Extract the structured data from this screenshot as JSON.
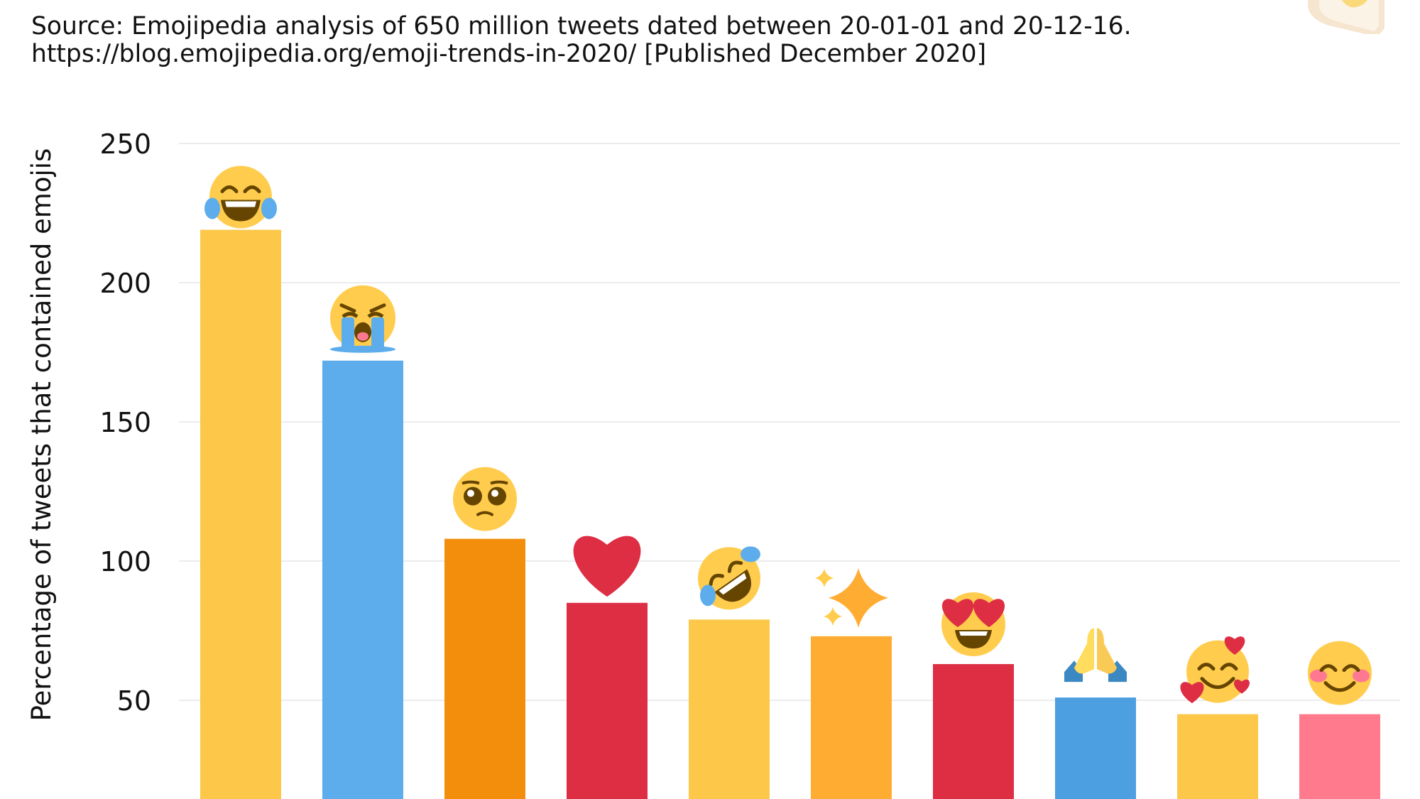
{
  "source": {
    "line1": "Source: Emojipedia analysis of 650 million tweets dated between 20-01-01 and 20-12-16.",
    "line2": "https://blog.emojipedia.org/emoji-trends-in-2020/ [Published December 2020]"
  },
  "logo_icon": "emojipedia-logo-icon",
  "chart_data": {
    "type": "bar",
    "title": "",
    "xlabel": "",
    "ylabel": "Percentage of tweets that contained emojis",
    "ylim": [
      15,
      260
    ],
    "yticks": [
      50,
      100,
      150,
      200,
      250
    ],
    "grid": true,
    "categories": [
      "face with tears of joy",
      "loudly crying face",
      "pleading face",
      "red heart",
      "rolling on the floor laughing",
      "sparkles",
      "smiling face with heart-eyes",
      "folded hands",
      "smiling face with hearts",
      "smiling face with smiling eyes"
    ],
    "values": [
      219,
      172,
      108,
      85,
      79,
      73,
      63,
      51,
      45,
      45
    ],
    "colors": [
      "#FDC84A",
      "#5DADEC",
      "#F28E0C",
      "#DD2E44",
      "#FDC84A",
      "#FFAC33",
      "#DD2E44",
      "#4C9FE0",
      "#FDC84A",
      "#FE7A8C"
    ],
    "icons": [
      "face-with-tears-of-joy-icon",
      "loudly-crying-face-icon",
      "pleading-face-icon",
      "red-heart-icon",
      "rolling-on-the-floor-laughing-icon",
      "sparkles-icon",
      "smiling-face-with-heart-eyes-icon",
      "folded-hands-icon",
      "smiling-face-with-hearts-icon",
      "smiling-face-with-smiling-eyes-icon"
    ]
  }
}
